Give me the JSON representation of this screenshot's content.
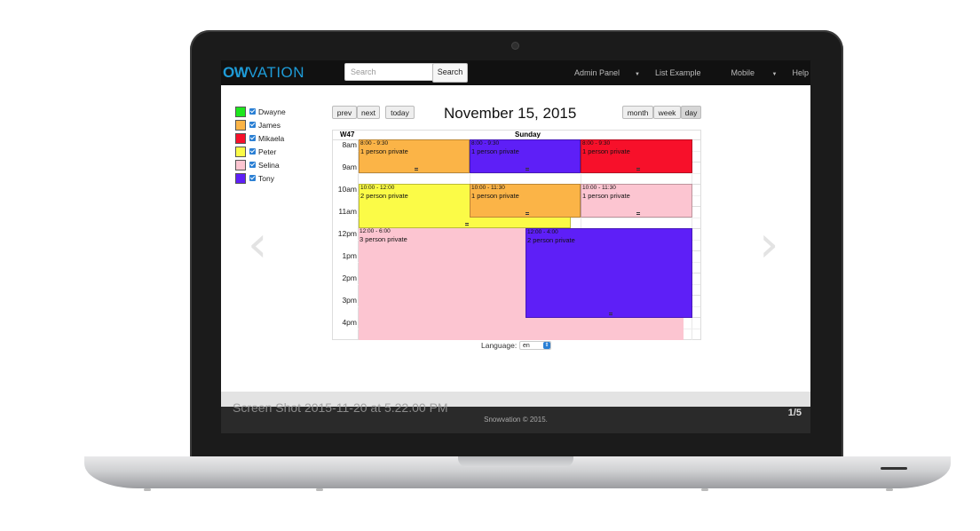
{
  "app": {
    "logo_bold": "OW",
    "logo_thin": "VATION"
  },
  "navbar": {
    "search_placeholder": "Search",
    "search_button": "Search",
    "links": [
      {
        "label": "Admin Panel",
        "dropdown": true
      },
      {
        "label": "List Example",
        "dropdown": false
      },
      {
        "label": "Mobile",
        "dropdown": true
      },
      {
        "label": "Help",
        "dropdown": false
      }
    ]
  },
  "legend": [
    {
      "name": "Dwayne",
      "color": "#1ee61e"
    },
    {
      "name": "James",
      "color": "#fbb447"
    },
    {
      "name": "Mikaela",
      "color": "#f7102a"
    },
    {
      "name": "Peter",
      "color": "#fbfb47"
    },
    {
      "name": "Selina",
      "color": "#fcc5d1"
    },
    {
      "name": "Tony",
      "color": "#5e1ff7"
    }
  ],
  "toolbar": {
    "prev": "prev",
    "next": "next",
    "today": "today",
    "title": "November 15, 2015",
    "views": [
      "month",
      "week",
      "day"
    ],
    "active_view": "day"
  },
  "calendar": {
    "week_label": "W47",
    "day_label": "Sunday",
    "hours": [
      "8am",
      "9am",
      "10am",
      "11am",
      "12pm",
      "1pm",
      "2pm",
      "3pm",
      "4pm"
    ],
    "events": [
      {
        "time": "8:00 - 9:30",
        "desc": "1 person private",
        "color": "#fbb447"
      },
      {
        "time": "8:00 - 9:30",
        "desc": "1 person private",
        "color": "#5e1ff7"
      },
      {
        "time": "8:00 - 9:30",
        "desc": "1 person private",
        "color": "#f7102a"
      },
      {
        "time": "10:00 - 12:00",
        "desc": "2 person private",
        "color": "#fbfb47"
      },
      {
        "time": "10:00 - 11:30",
        "desc": "1 person private",
        "color": "#fbb447"
      },
      {
        "time": "10:00 - 11:30",
        "desc": "1 person private",
        "color": "#fcc5d1"
      },
      {
        "time": "12:00 - 6:00",
        "desc": "3 person private",
        "color": "#fcc5d1"
      },
      {
        "time": "12:00 - 4:00",
        "desc": "2 person private",
        "color": "#5e1ff7"
      }
    ]
  },
  "language": {
    "label": "Language:",
    "value": "en"
  },
  "footer": {
    "credit": "Snowvation © 2015.",
    "caption": "Screen Shot 2015-11-20 at 5.22.00 PM",
    "counter": "1/5"
  }
}
